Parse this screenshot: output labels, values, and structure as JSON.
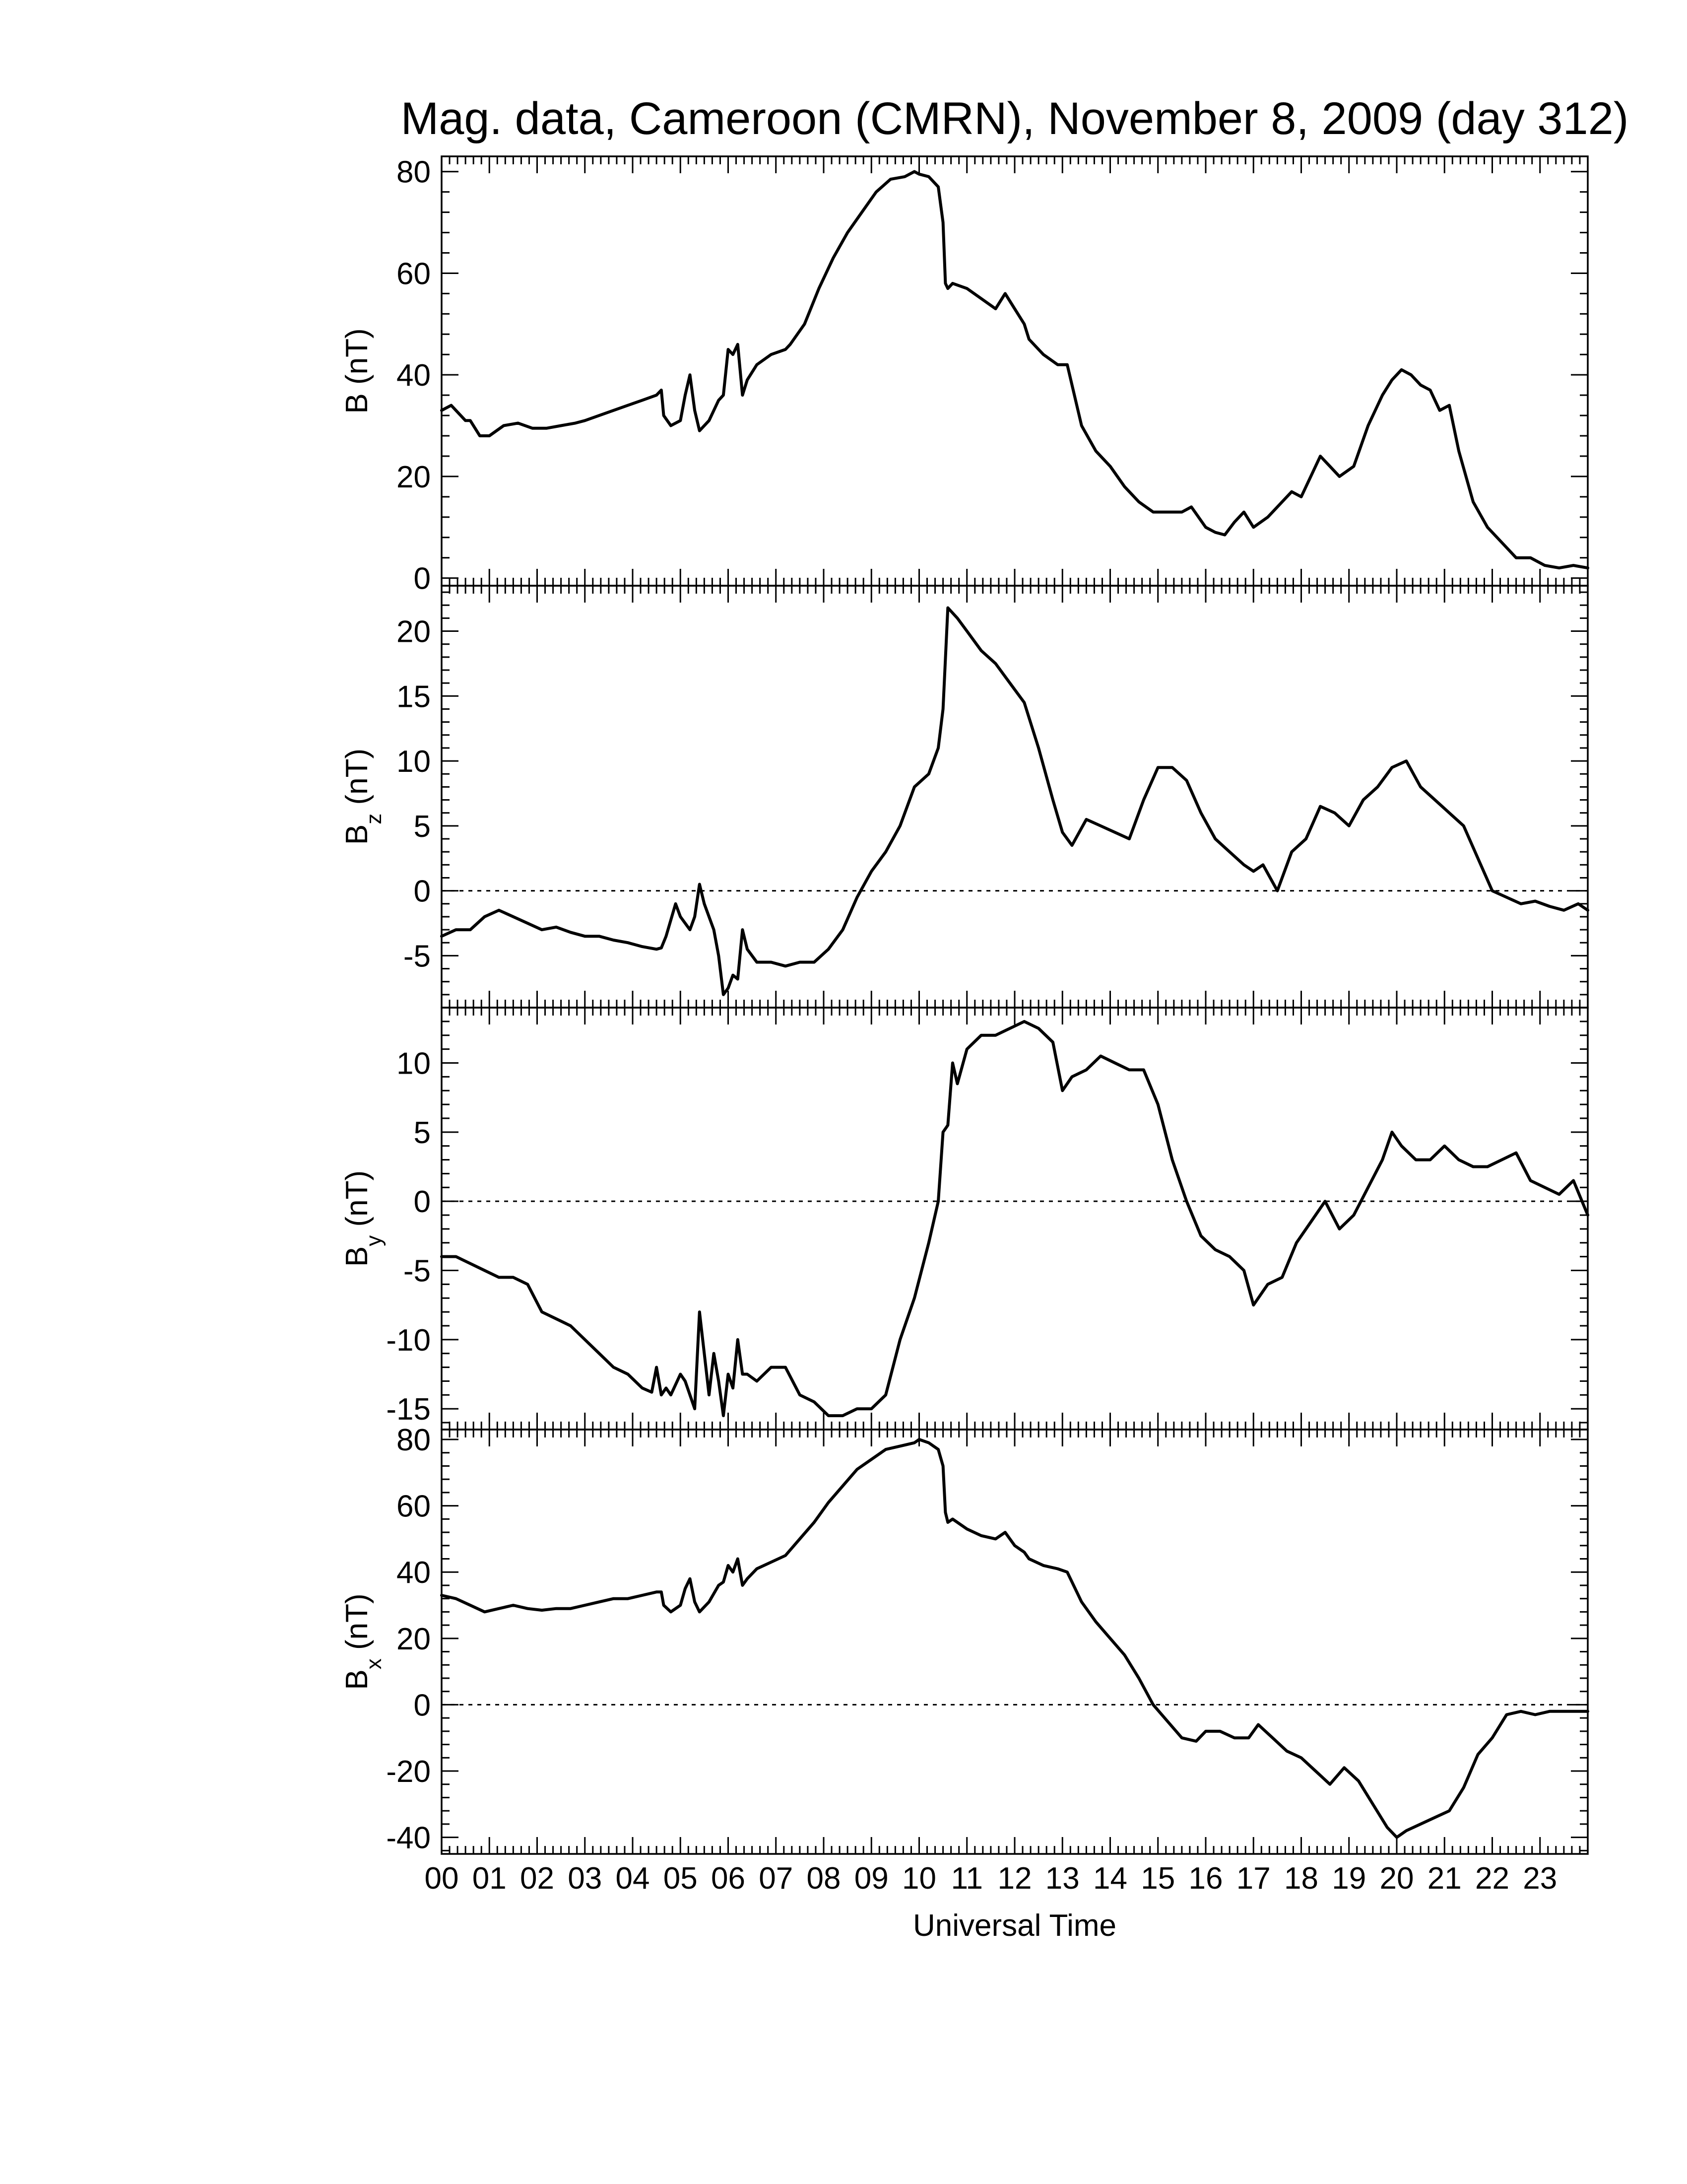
{
  "chart_data": {
    "type": "line",
    "title": "Mag. data, Cameroon (CMRN), November 8, 2009 (day 312)",
    "xlabel": "Universal Time",
    "x_tick_labels": [
      "00",
      "01",
      "02",
      "03",
      "04",
      "05",
      "06",
      "07",
      "08",
      "09",
      "10",
      "11",
      "12",
      "13",
      "14",
      "15",
      "16",
      "17",
      "18",
      "19",
      "20",
      "21",
      "22",
      "23"
    ],
    "xlim": [
      0,
      24
    ],
    "panels": [
      {
        "ylabel_main": "B",
        "ylabel_sub": "",
        "ylabel_unit": "(nT)",
        "ylim": [
          -1.5,
          83
        ],
        "yticks": [
          0,
          20,
          40,
          60,
          80
        ],
        "zero_line": false,
        "series": [
          {
            "x": [
              0,
              0.2,
              0.5,
              0.6,
              0.8,
              1.0,
              1.3,
              1.6,
              1.9,
              2.2,
              2.5,
              2.8,
              3.0,
              3.3,
              3.6,
              3.9,
              4.2,
              4.5,
              4.6,
              4.65,
              4.8,
              5.0,
              5.1,
              5.2,
              5.3,
              5.4,
              5.6,
              5.8,
              5.9,
              6.0,
              6.1,
              6.2,
              6.3,
              6.4,
              6.6,
              6.9,
              7.2,
              7.3,
              7.6,
              7.9,
              8.2,
              8.5,
              8.8,
              9.1,
              9.4,
              9.7,
              9.9,
              10.0,
              10.2,
              10.4,
              10.5,
              10.55,
              10.6,
              10.7,
              11.0,
              11.3,
              11.6,
              11.8,
              12.0,
              12.2,
              12.3,
              12.6,
              12.9,
              13.1,
              13.4,
              13.7,
              14.0,
              14.3,
              14.6,
              14.9,
              15.2,
              15.5,
              15.7,
              16.0,
              16.2,
              16.4,
              16.6,
              16.8,
              17.0,
              17.3,
              17.6,
              17.8,
              18.0,
              18.2,
              18.4,
              18.6,
              18.8,
              19.1,
              19.4,
              19.7,
              19.9,
              20.1,
              20.3,
              20.5,
              20.7,
              20.9,
              21.1,
              21.3,
              21.6,
              21.9,
              22.2,
              22.5,
              22.8,
              23.1,
              23.4,
              23.7,
              24.0
            ],
            "y": [
              33,
              34,
              31,
              31,
              28,
              28,
              30,
              30.5,
              29.5,
              29.5,
              30,
              30.5,
              31,
              32,
              33,
              34,
              35,
              36,
              37,
              32,
              30,
              31,
              36,
              40,
              33,
              29,
              31,
              35,
              36,
              45,
              44,
              46,
              36,
              39,
              42,
              44,
              45,
              46,
              50,
              57,
              63,
              68,
              72,
              76,
              78.5,
              79,
              80,
              79.5,
              79,
              77,
              70,
              58,
              57,
              58,
              57,
              55,
              53,
              56,
              53,
              50,
              47,
              44,
              42,
              42,
              30,
              25,
              22,
              18,
              15,
              13,
              13,
              13,
              14,
              10,
              9,
              8.5,
              11,
              13,
              10,
              12,
              15,
              17,
              16,
              20,
              24,
              22,
              20,
              22,
              30,
              36,
              39,
              41,
              40,
              38,
              37,
              33,
              34,
              25,
              15,
              10,
              7,
              4,
              4,
              2.5,
              2,
              2.5,
              2
            ]
          }
        ]
      },
      {
        "ylabel_main": "B",
        "ylabel_sub": "z",
        "ylabel_unit": "(nT)",
        "ylim": [
          -9,
          23.5
        ],
        "yticks": [
          -5,
          0,
          5,
          10,
          15,
          20
        ],
        "zero_line": true,
        "series": [
          {
            "x": [
              0,
              0.3,
              0.6,
              0.9,
              1.2,
              1.5,
              1.8,
              2.1,
              2.4,
              2.7,
              3.0,
              3.3,
              3.6,
              3.9,
              4.2,
              4.5,
              4.6,
              4.7,
              4.9,
              5.0,
              5.2,
              5.3,
              5.4,
              5.5,
              5.7,
              5.8,
              5.9,
              6.0,
              6.1,
              6.2,
              6.3,
              6.4,
              6.6,
              6.9,
              7.2,
              7.5,
              7.8,
              8.1,
              8.4,
              8.7,
              9.0,
              9.3,
              9.6,
              9.9,
              10.2,
              10.4,
              10.5,
              10.6,
              10.8,
              11.0,
              11.3,
              11.6,
              11.9,
              12.2,
              12.5,
              12.8,
              13.0,
              13.2,
              13.5,
              13.8,
              14.1,
              14.4,
              14.7,
              15.0,
              15.3,
              15.6,
              15.9,
              16.2,
              16.5,
              16.8,
              17.0,
              17.2,
              17.5,
              17.8,
              18.1,
              18.4,
              18.7,
              19.0,
              19.3,
              19.6,
              19.9,
              20.2,
              20.5,
              20.8,
              21.1,
              21.4,
              21.7,
              22.0,
              22.3,
              22.6,
              22.9,
              23.2,
              23.5,
              23.8,
              24.0
            ],
            "y": [
              -3.5,
              -3,
              -3,
              -2,
              -1.5,
              -2,
              -2.5,
              -3,
              -2.8,
              -3.2,
              -3.5,
              -3.5,
              -3.8,
              -4,
              -4.3,
              -4.5,
              -4.4,
              -3.5,
              -1,
              -2,
              -3,
              -2,
              0.5,
              -1,
              -3,
              -5,
              -8,
              -7.5,
              -6.5,
              -6.8,
              -3,
              -4.5,
              -5.5,
              -5.5,
              -5.8,
              -5.5,
              -5.5,
              -4.5,
              -3,
              -0.5,
              1.5,
              3,
              5,
              8,
              9,
              11,
              14,
              21.8,
              21,
              20,
              18.5,
              17.5,
              16,
              14.5,
              11,
              7,
              4.5,
              3.5,
              5.5,
              5,
              4.5,
              4,
              7,
              9.5,
              9.5,
              8.5,
              6,
              4,
              3,
              2,
              1.5,
              2,
              0,
              3,
              4,
              6.5,
              6,
              5,
              7,
              8,
              9.5,
              10,
              8,
              7,
              6,
              5,
              2.5,
              0,
              -0.5,
              -1,
              -0.8,
              -1.2,
              -1.5,
              -1,
              -1.5
            ]
          }
        ]
      },
      {
        "ylabel_main": "B",
        "ylabel_sub": "y",
        "ylabel_unit": "(nT)",
        "ylim": [
          -16.5,
          14
        ],
        "yticks": [
          -15,
          -10,
          -5,
          0,
          5,
          10
        ],
        "zero_line": true,
        "series": [
          {
            "x": [
              0,
              0.3,
              0.6,
              0.9,
              1.2,
              1.5,
              1.8,
              2.1,
              2.4,
              2.7,
              3.0,
              3.3,
              3.6,
              3.9,
              4.2,
              4.4,
              4.5,
              4.6,
              4.7,
              4.8,
              5.0,
              5.1,
              5.3,
              5.4,
              5.5,
              5.6,
              5.7,
              5.8,
              5.9,
              6.0,
              6.1,
              6.2,
              6.3,
              6.4,
              6.6,
              6.9,
              7.2,
              7.5,
              7.8,
              8.1,
              8.4,
              8.7,
              9.0,
              9.3,
              9.6,
              9.9,
              10.2,
              10.4,
              10.5,
              10.6,
              10.7,
              10.8,
              11.0,
              11.3,
              11.6,
              11.9,
              12.2,
              12.5,
              12.8,
              13.0,
              13.2,
              13.5,
              13.8,
              14.1,
              14.4,
              14.7,
              15.0,
              15.3,
              15.6,
              15.9,
              16.2,
              16.5,
              16.8,
              17.0,
              17.3,
              17.6,
              17.9,
              18.2,
              18.5,
              18.8,
              19.1,
              19.4,
              19.7,
              19.9,
              20.1,
              20.4,
              20.7,
              21.0,
              21.3,
              21.6,
              21.9,
              22.2,
              22.5,
              22.8,
              23.1,
              23.4,
              23.7,
              24.0
            ],
            "y": [
              -4,
              -4,
              -4.5,
              -5,
              -5.5,
              -5.5,
              -6,
              -8,
              -8.5,
              -9,
              -10,
              -11,
              -12,
              -12.5,
              -13.5,
              -13.8,
              -12,
              -14,
              -13.5,
              -14,
              -12.5,
              -13,
              -15,
              -8,
              -11,
              -14,
              -11,
              -13,
              -15.5,
              -12.5,
              -13.5,
              -10,
              -12.5,
              -12.5,
              -13,
              -12,
              -12,
              -14,
              -14.5,
              -15.5,
              -15.5,
              -15,
              -15,
              -14,
              -10,
              -7,
              -3,
              0,
              5,
              5.5,
              10,
              8.5,
              11,
              12,
              12,
              12.5,
              13,
              12.5,
              11.5,
              8,
              9,
              9.5,
              10.5,
              10,
              9.5,
              9.5,
              7,
              3,
              0,
              -2.5,
              -3.5,
              -4,
              -5,
              -7.5,
              -6,
              -5.5,
              -3,
              -1.5,
              0,
              -2,
              -1,
              1,
              3,
              5,
              4,
              3,
              3,
              4,
              3,
              2.5,
              2.5,
              3,
              3.5,
              1.5,
              1,
              0.5,
              1.5,
              -1
            ]
          }
        ]
      },
      {
        "ylabel_main": "B",
        "ylabel_sub": "x",
        "ylabel_unit": "(nT)",
        "ylim": [
          -45,
          83
        ],
        "yticks": [
          -40,
          -20,
          0,
          20,
          40,
          60,
          80
        ],
        "zero_line": true,
        "series": [
          {
            "x": [
              0,
              0.3,
              0.6,
              0.9,
              1.2,
              1.5,
              1.8,
              2.1,
              2.4,
              2.7,
              3.0,
              3.3,
              3.6,
              3.9,
              4.2,
              4.5,
              4.6,
              4.65,
              4.8,
              5.0,
              5.1,
              5.2,
              5.3,
              5.4,
              5.6,
              5.8,
              5.9,
              6.0,
              6.1,
              6.2,
              6.3,
              6.4,
              6.6,
              6.9,
              7.2,
              7.5,
              7.8,
              8.1,
              8.4,
              8.7,
              9.0,
              9.3,
              9.6,
              9.9,
              10.0,
              10.2,
              10.4,
              10.5,
              10.55,
              10.6,
              10.7,
              11.0,
              11.3,
              11.6,
              11.8,
              12.0,
              12.2,
              12.3,
              12.6,
              12.9,
              13.1,
              13.4,
              13.7,
              14.0,
              14.3,
              14.6,
              14.9,
              15.2,
              15.5,
              15.8,
              16.0,
              16.3,
              16.6,
              16.9,
              17.1,
              17.4,
              17.7,
              18.0,
              18.3,
              18.6,
              18.9,
              19.2,
              19.5,
              19.8,
              20.0,
              20.2,
              20.5,
              20.8,
              21.1,
              21.4,
              21.7,
              22.0,
              22.3,
              22.6,
              22.9,
              23.2,
              23.5,
              23.8,
              24.0
            ],
            "y": [
              33,
              32,
              30,
              28,
              29,
              30,
              29,
              28.5,
              29,
              29,
              30,
              31,
              32,
              32,
              33,
              34,
              34,
              30,
              28,
              30,
              35,
              38,
              31,
              28,
              31,
              36,
              37,
              42,
              40,
              44,
              36,
              38,
              41,
              43,
              45,
              50,
              55,
              61,
              66,
              71,
              74,
              77,
              78,
              79,
              80,
              79,
              77,
              72,
              58,
              55,
              56,
              53,
              51,
              50,
              52,
              48,
              46,
              44,
              42,
              41,
              40,
              31,
              25,
              20,
              15,
              8,
              0,
              -5,
              -10,
              -11,
              -8,
              -8,
              -10,
              -10,
              -6,
              -10,
              -14,
              -16,
              -20,
              -24,
              -19,
              -23,
              -30,
              -37,
              -40,
              -38,
              -36,
              -34,
              -32,
              -25,
              -15,
              -10,
              -3,
              -2,
              -3,
              -2,
              -2,
              -2,
              -2
            ]
          }
        ]
      }
    ]
  }
}
